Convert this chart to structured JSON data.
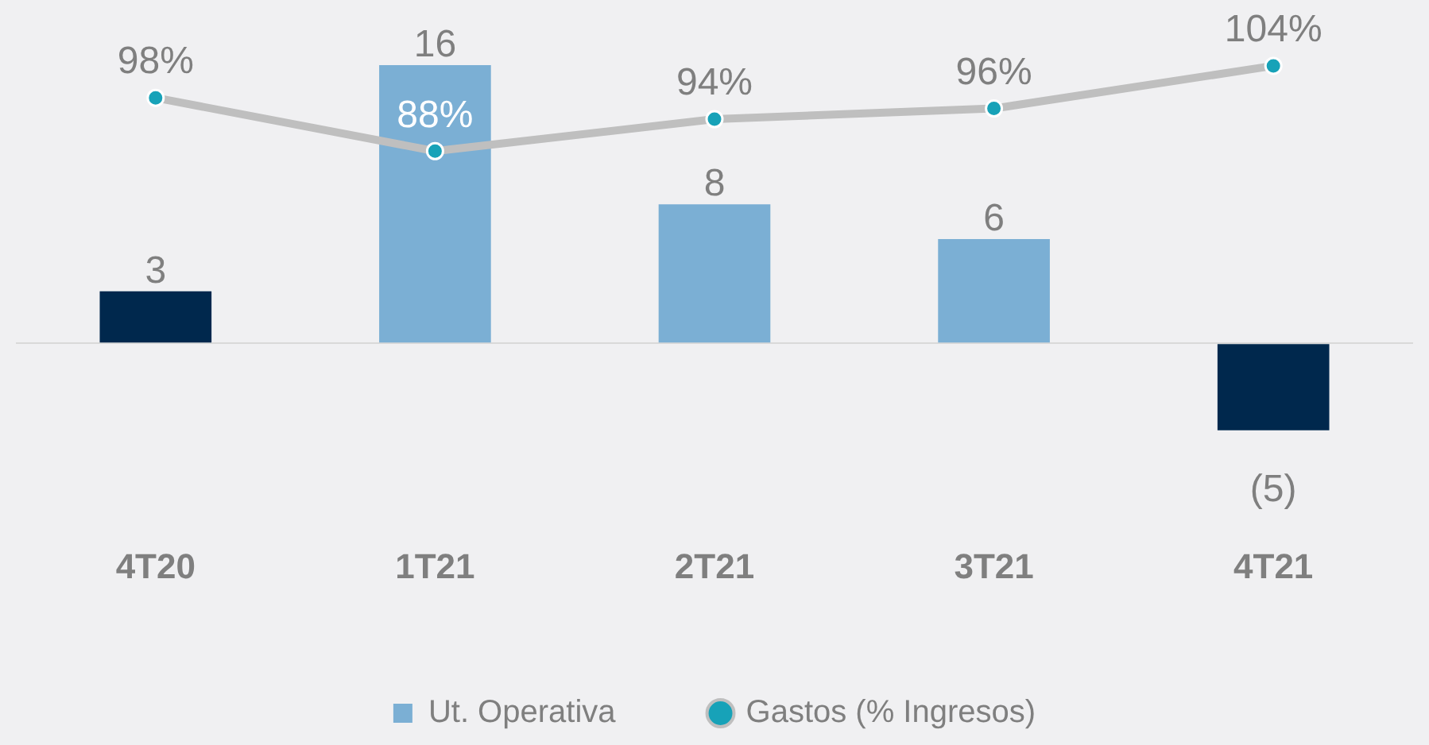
{
  "chart_data": {
    "type": "bar",
    "categories": [
      "4T20",
      "1T21",
      "2T21",
      "3T21",
      "4T21"
    ],
    "tick_labels": "x",
    "legend": "bottom",
    "grid": false,
    "series": [
      {
        "name": "Ut. Operativa",
        "color": "#7bafd4",
        "colors": [
          "#00284d",
          "#7bafd4",
          "#7bafd4",
          "#7bafd4",
          "#00284d"
        ],
        "values": [
          3,
          16,
          8,
          6,
          -5
        ],
        "value_labels": [
          "3",
          "16",
          "8",
          "6",
          "(5)"
        ]
      },
      {
        "type": "line",
        "name": "Gastos (% Ingresos)",
        "color": "#bfbfbf",
        "colors": [
          "#17a2b8",
          "#17a2b8",
          "#17a2b8",
          "#17a2b8",
          "#17a2b8"
        ],
        "marker": "circle",
        "axis": "y2",
        "values": [
          98,
          88,
          94,
          96,
          104
        ],
        "value_labels": [
          "98%",
          "88%",
          "94%",
          "96%",
          "104%"
        ]
      }
    ]
  }
}
